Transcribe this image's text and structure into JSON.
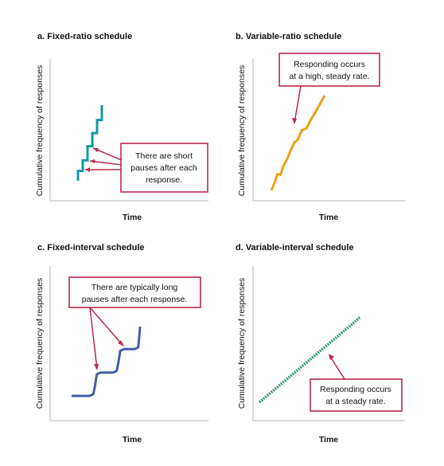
{
  "chart_data": [
    {
      "type": "line",
      "title": "a. Fixed-ratio schedule",
      "xlabel": "Time",
      "ylabel": "Cumulative frequency of responses",
      "series": [
        {
          "values": [
            [
              0,
              0
            ],
            [
              0,
              12
            ],
            [
              3,
              12
            ],
            [
              3,
              25
            ],
            [
              6,
              25
            ],
            [
              6,
              42
            ],
            [
              9,
              42
            ],
            [
              9,
              58
            ],
            [
              12,
              58
            ],
            [
              12,
              74
            ],
            [
              15,
              74
            ],
            [
              15,
              92
            ]
          ]
        }
      ],
      "line_color": "#1597a8",
      "callout": [
        "There are short",
        "pauses after each",
        "response."
      ]
    },
    {
      "type": "line",
      "title": "b. Variable-ratio schedule",
      "xlabel": "Time",
      "ylabel": "Cumulative frequency of responses",
      "series": [
        {
          "values": [
            [
              0,
              0
            ],
            [
              5,
              10
            ],
            [
              8,
              18
            ],
            [
              12,
              17
            ],
            [
              16,
              27
            ],
            [
              21,
              35
            ],
            [
              26,
              45
            ],
            [
              30,
              52
            ],
            [
              35,
              56
            ],
            [
              40,
              66
            ],
            [
              46,
              68
            ],
            [
              52,
              78
            ],
            [
              58,
              86
            ],
            [
              64,
              95
            ],
            [
              70,
              104
            ]
          ]
        }
      ],
      "line_color": "#e8a21a",
      "callout": [
        "Responding occurs",
        "at a high, steady rate."
      ]
    },
    {
      "type": "line",
      "title": "c. Fixed-interval schedule",
      "xlabel": "Time",
      "ylabel": "Cumulative frequency of responses",
      "series": [
        {
          "values": [
            [
              0,
              0
            ],
            [
              20,
              0
            ],
            [
              24,
              2
            ],
            [
              26,
              12
            ],
            [
              28,
              26
            ],
            [
              32,
              28
            ],
            [
              46,
              28
            ],
            [
              50,
              30
            ],
            [
              52,
              40
            ],
            [
              54,
              54
            ],
            [
              58,
              56
            ],
            [
              70,
              56
            ],
            [
              74,
              58
            ],
            [
              75,
              70
            ],
            [
              76,
              83
            ]
          ]
        }
      ],
      "line_color": "#445fa6",
      "callout": [
        "There are typically long",
        "pauses after each response."
      ]
    },
    {
      "type": "line",
      "title": "d. Variable-interval schedule",
      "xlabel": "Time",
      "ylabel": "Cumulative frequency of responses",
      "series": [
        {
          "values": [
            [
              0,
              0
            ],
            [
              100,
              70
            ]
          ]
        }
      ],
      "line_color": "#2f9a72",
      "callout": [
        "Responding occurs",
        "at a steady rate."
      ]
    }
  ],
  "accent_color": "#b8294a"
}
